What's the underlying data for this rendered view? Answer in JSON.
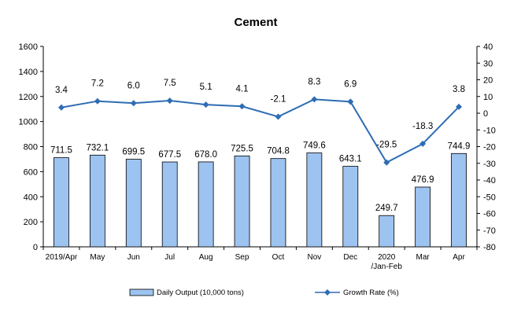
{
  "chart_data": {
    "type": "bar+line",
    "title": "Cement",
    "categories": [
      "2019/Apr",
      "May",
      "Jun",
      "Jul",
      "Aug",
      "Sep",
      "Oct",
      "Nov",
      "Dec",
      "2020\n/Jan-Feb",
      "Mar",
      "Apr"
    ],
    "series": [
      {
        "name": "Daily Output (10,000 tons)",
        "type": "bar",
        "axis": "left",
        "color": "#9DC3F0",
        "values": [
          711.5,
          732.1,
          699.5,
          677.5,
          678.0,
          725.5,
          704.8,
          749.6,
          643.1,
          249.7,
          476.9,
          744.9
        ],
        "labels": [
          "711.5",
          "732.1",
          "699.5",
          "677.5",
          "678.0",
          "725.5",
          "704.8",
          "749.6",
          "643.1",
          "249.7",
          "476.9",
          "744.9"
        ]
      },
      {
        "name": "Growth Rate (%)",
        "type": "line",
        "axis": "right",
        "color": "#2E6DB4",
        "values": [
          3.4,
          7.2,
          6.0,
          7.5,
          5.1,
          4.1,
          -2.1,
          8.3,
          6.9,
          -29.5,
          -18.3,
          3.8
        ],
        "labels": [
          "3.4",
          "7.2",
          "6.0",
          "7.5",
          "5.1",
          "4.1",
          "-2.1",
          "8.3",
          "6.9",
          "-29.5",
          "-18.3",
          "3.8"
        ]
      }
    ],
    "left_axis": {
      "min": 0,
      "max": 1600,
      "step": 200,
      "ticks": [
        "0",
        "200",
        "400",
        "600",
        "800",
        "1000",
        "1200",
        "1400",
        "1600"
      ]
    },
    "right_axis": {
      "min": -80,
      "max": 40,
      "step": 10,
      "ticks": [
        "-80",
        "-70",
        "-60",
        "-50",
        "-40",
        "-30",
        "-20",
        "-10",
        "0",
        "10",
        "20",
        "30",
        "40"
      ]
    },
    "grid": false,
    "legend_position": "bottom"
  }
}
